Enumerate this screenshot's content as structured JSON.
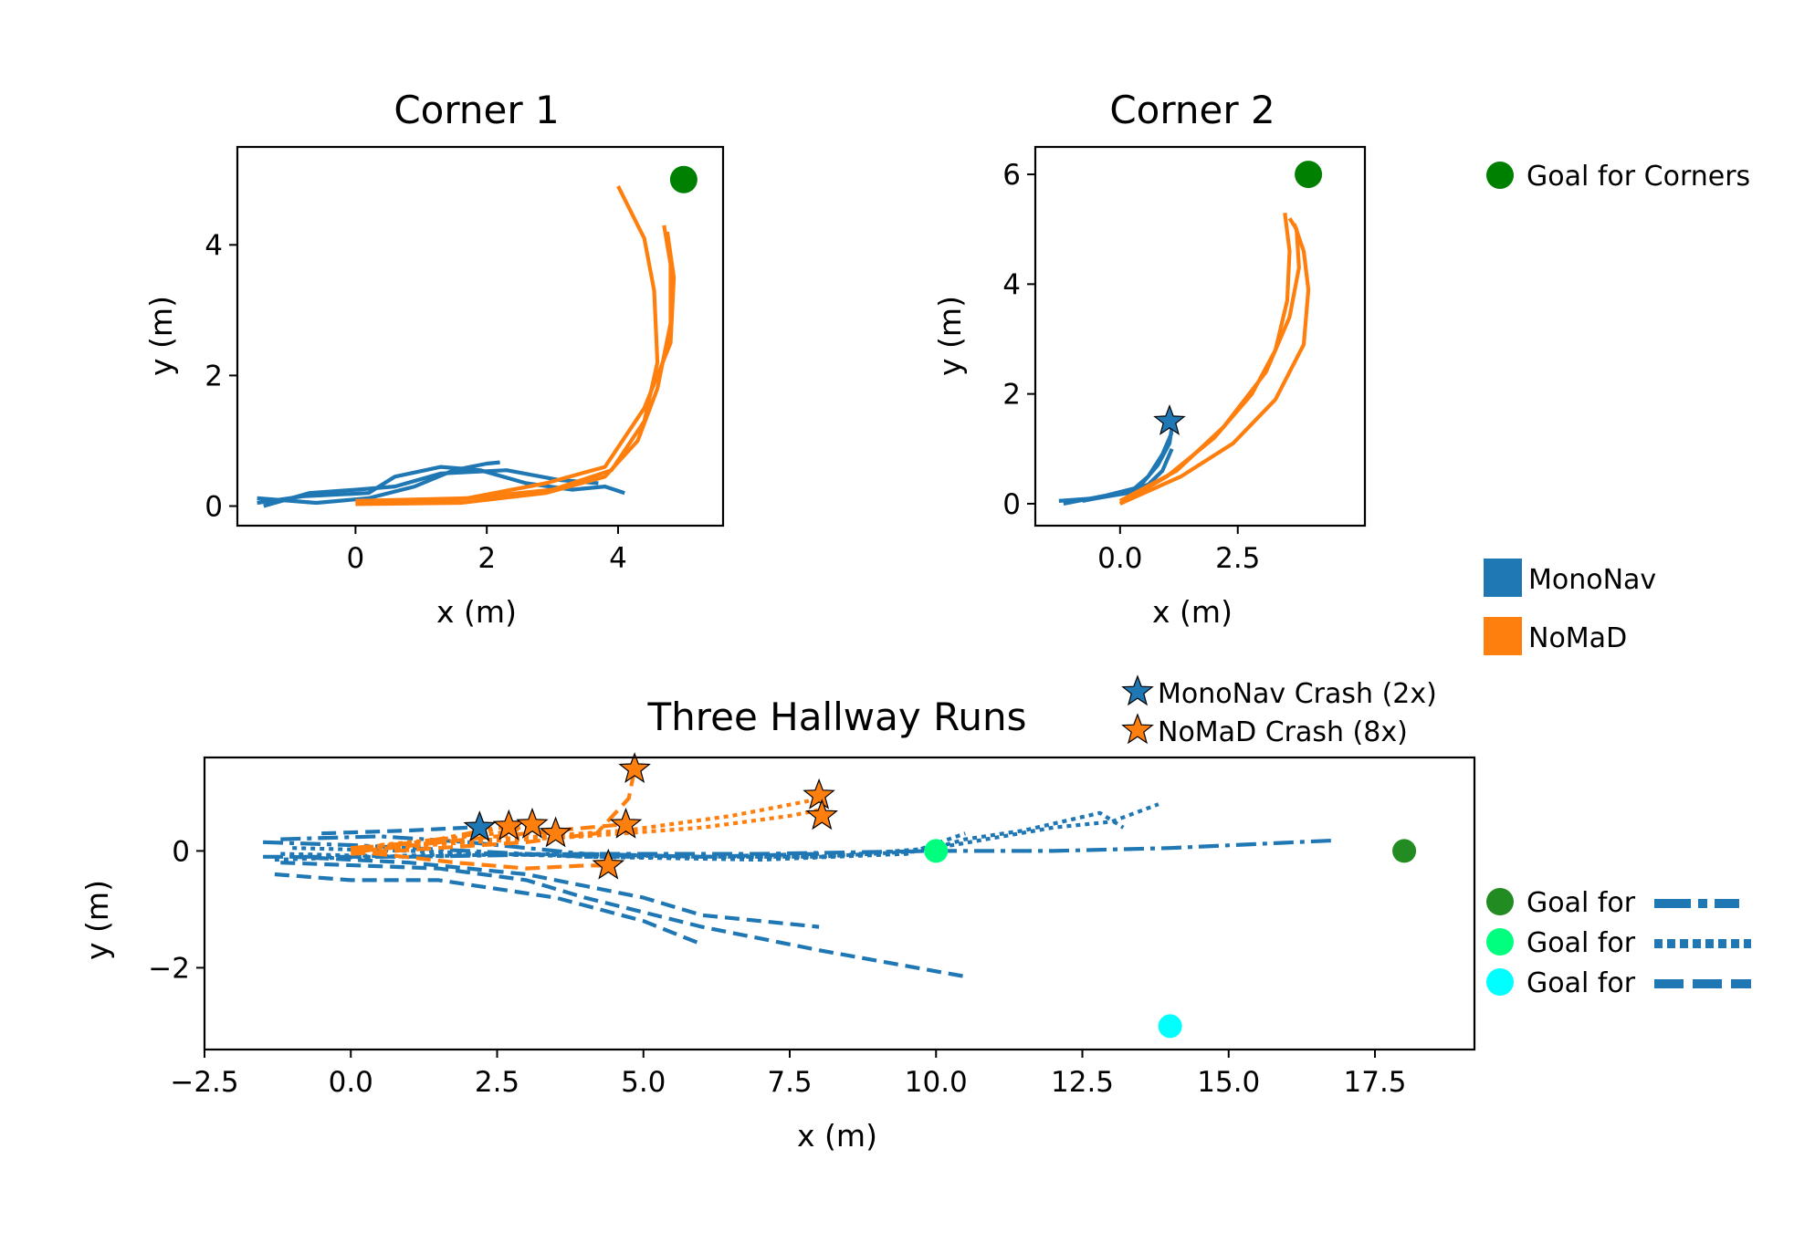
{
  "colors": {
    "mononav": "#1f77b4",
    "nomad": "#ff7f0e",
    "goal_corners": "#008000",
    "goal_dashdot": "#228b22",
    "goal_dotted": "#00ff7f",
    "goal_dashed": "#00ffff"
  },
  "legends": {
    "goal_corners": "Goal for Corners",
    "mononav": "MonoNav",
    "nomad": "NoMaD",
    "mononav_crash": "MonoNav Crash (2x)",
    "nomad_crash": "NoMaD Crash (8x)",
    "goal_for": "Goal for"
  },
  "chart_data": [
    {
      "type": "line",
      "title": "Corner 1",
      "xlabel": "x (m)",
      "ylabel": "y (m)",
      "xlim": [
        -1.8,
        5.6
      ],
      "ylim": [
        -0.3,
        5.5
      ],
      "xticks": [
        0,
        2,
        4
      ],
      "yticks": [
        0,
        2,
        4
      ],
      "goal": {
        "x": 5.0,
        "y": 5.0
      },
      "series": [
        {
          "group": "MonoNav",
          "style": "solid",
          "points": [
            [
              -1.5,
              0.05
            ],
            [
              -0.8,
              0.15
            ],
            [
              0.2,
              0.2
            ],
            [
              0.6,
              0.45
            ],
            [
              1.3,
              0.6
            ],
            [
              1.9,
              0.55
            ],
            [
              2.6,
              0.35
            ],
            [
              3.3,
              0.25
            ],
            [
              3.8,
              0.3
            ],
            [
              4.1,
              0.2
            ]
          ]
        },
        {
          "group": "MonoNav",
          "style": "solid",
          "points": [
            [
              -1.5,
              0.12
            ],
            [
              -0.6,
              0.05
            ],
            [
              0.2,
              0.12
            ],
            [
              0.9,
              0.3
            ],
            [
              1.5,
              0.55
            ],
            [
              2.0,
              0.65
            ],
            [
              2.2,
              0.67
            ]
          ]
        },
        {
          "group": "MonoNav",
          "style": "solid",
          "points": [
            [
              -1.4,
              0.0
            ],
            [
              -0.7,
              0.2
            ],
            [
              0.0,
              0.25
            ],
            [
              0.6,
              0.3
            ],
            [
              1.3,
              0.5
            ],
            [
              2.3,
              0.55
            ],
            [
              3.1,
              0.4
            ],
            [
              3.7,
              0.35
            ]
          ]
        },
        {
          "group": "NoMaD",
          "style": "solid",
          "points": [
            [
              0.0,
              0.05
            ],
            [
              1.5,
              0.1
            ],
            [
              3.0,
              0.25
            ],
            [
              3.9,
              0.55
            ],
            [
              4.4,
              1.3
            ],
            [
              4.6,
              2.2
            ],
            [
              4.55,
              3.3
            ],
            [
              4.4,
              4.1
            ],
            [
              4.0,
              4.9
            ]
          ]
        },
        {
          "group": "NoMaD",
          "style": "solid",
          "points": [
            [
              0.0,
              0.08
            ],
            [
              1.7,
              0.12
            ],
            [
              2.9,
              0.35
            ],
            [
              3.8,
              0.6
            ],
            [
              4.4,
              1.5
            ],
            [
              4.8,
              2.5
            ],
            [
              4.85,
              3.5
            ],
            [
              4.75,
              4.2
            ]
          ]
        },
        {
          "group": "NoMaD",
          "style": "solid",
          "points": [
            [
              0.0,
              0.03
            ],
            [
              1.6,
              0.05
            ],
            [
              2.9,
              0.2
            ],
            [
              3.8,
              0.45
            ],
            [
              4.3,
              1.0
            ],
            [
              4.6,
              1.8
            ],
            [
              4.8,
              2.8
            ],
            [
              4.8,
              3.7
            ],
            [
              4.7,
              4.3
            ]
          ]
        }
      ]
    },
    {
      "type": "line",
      "title": "Corner 2",
      "xlabel": "x (m)",
      "ylabel": "y (m)",
      "xlim": [
        -1.8,
        5.2
      ],
      "ylim": [
        -0.4,
        6.5
      ],
      "xticks": [
        0.0,
        2.5
      ],
      "yticks": [
        0,
        2,
        4,
        6
      ],
      "goal": {
        "x": 4.0,
        "y": 6.0
      },
      "series": [
        {
          "group": "MonoNav",
          "style": "solid",
          "points": [
            [
              -1.3,
              0.05
            ],
            [
              -0.5,
              0.1
            ],
            [
              0.2,
              0.2
            ],
            [
              0.6,
              0.5
            ],
            [
              0.9,
              0.9
            ],
            [
              1.1,
              1.3
            ]
          ]
        },
        {
          "group": "MonoNav",
          "style": "solid",
          "points": [
            [
              -1.2,
              0.0
            ],
            [
              -0.3,
              0.15
            ],
            [
              0.4,
              0.3
            ],
            [
              0.8,
              0.7
            ],
            [
              1.05,
              1.1
            ],
            [
              1.1,
              1.4
            ]
          ]
        },
        {
          "group": "MonoNav",
          "style": "solid",
          "points": [
            [
              -0.8,
              0.05
            ],
            [
              0.1,
              0.2
            ],
            [
              0.6,
              0.35
            ],
            [
              0.9,
              0.6
            ],
            [
              1.1,
              1.0
            ]
          ]
        },
        {
          "group": "NoMaD",
          "style": "solid",
          "points": [
            [
              0.0,
              0.0
            ],
            [
              1.0,
              0.5
            ],
            [
              2.0,
              1.2
            ],
            [
              2.8,
              2.0
            ],
            [
              3.3,
              2.8
            ],
            [
              3.55,
              3.7
            ],
            [
              3.6,
              4.6
            ],
            [
              3.5,
              5.3
            ]
          ]
        },
        {
          "group": "NoMaD",
          "style": "solid",
          "points": [
            [
              0.0,
              0.05
            ],
            [
              1.2,
              0.6
            ],
            [
              2.2,
              1.4
            ],
            [
              3.1,
              2.4
            ],
            [
              3.6,
              3.4
            ],
            [
              3.8,
              4.3
            ],
            [
              3.75,
              5.0
            ],
            [
              3.6,
              5.2
            ]
          ]
        },
        {
          "group": "NoMaD",
          "style": "solid",
          "points": [
            [
              0.0,
              0.0
            ],
            [
              1.3,
              0.5
            ],
            [
              2.4,
              1.1
            ],
            [
              3.3,
              1.9
            ],
            [
              3.9,
              2.9
            ],
            [
              4.0,
              3.9
            ],
            [
              3.9,
              4.6
            ],
            [
              3.7,
              5.1
            ]
          ]
        }
      ],
      "crashes": [
        {
          "group": "MonoNav",
          "x": 1.05,
          "y": 1.5
        }
      ]
    },
    {
      "type": "line",
      "title": "Three Hallway Runs",
      "xlabel": "x (m)",
      "ylabel": "y (m)",
      "xlim": [
        -2.5,
        19.2
      ],
      "ylim": [
        -3.4,
        1.6
      ],
      "xticks": [
        -2.5,
        0.0,
        2.5,
        5.0,
        7.5,
        10.0,
        12.5,
        15.0,
        17.5
      ],
      "yticks": [
        0,
        -2
      ],
      "goals": [
        {
          "style": "dashdot",
          "x": 18.0,
          "y": 0.0
        },
        {
          "style": "dotted",
          "x": 10.0,
          "y": 0.0
        },
        {
          "style": "dashed",
          "x": 14.0,
          "y": -3.0
        }
      ],
      "series": [
        {
          "group": "MonoNav",
          "style": "dashdot",
          "points": [
            [
              -1.5,
              -0.1
            ],
            [
              1.0,
              -0.1
            ],
            [
              4.0,
              -0.05
            ],
            [
              7.0,
              -0.05
            ],
            [
              10.0,
              0.0
            ],
            [
              12.0,
              0.0
            ],
            [
              14.0,
              0.05
            ],
            [
              16.8,
              0.18
            ]
          ]
        },
        {
          "group": "MonoNav",
          "style": "dashdot",
          "points": [
            [
              -1.2,
              0.2
            ],
            [
              0.5,
              0.25
            ],
            [
              2.0,
              0.15
            ],
            [
              4.0,
              -0.05
            ],
            [
              6.0,
              -0.1
            ],
            [
              8.0,
              -0.05
            ]
          ]
        },
        {
          "group": "MonoNav",
          "style": "dashdot",
          "points": [
            [
              -1.5,
              0.15
            ],
            [
              0.0,
              0.1
            ],
            [
              2.0,
              0.0
            ],
            [
              4.0,
              -0.1
            ],
            [
              5.0,
              -0.1
            ]
          ]
        },
        {
          "group": "MonoNav",
          "style": "dotted",
          "points": [
            [
              -1.2,
              -0.05
            ],
            [
              1.0,
              -0.1
            ],
            [
              3.0,
              -0.05
            ],
            [
              6.0,
              -0.1
            ],
            [
              8.0,
              -0.1
            ],
            [
              9.8,
              0.0
            ],
            [
              10.5,
              0.2
            ],
            [
              11.5,
              0.35
            ],
            [
              12.8,
              0.65
            ],
            [
              13.2,
              0.4
            ]
          ]
        },
        {
          "group": "MonoNav",
          "style": "dotted",
          "points": [
            [
              -1.0,
              0.05
            ],
            [
              1.0,
              0.0
            ],
            [
              4.0,
              -0.1
            ],
            [
              7.0,
              -0.15
            ],
            [
              9.5,
              -0.05
            ],
            [
              10.5,
              0.3
            ]
          ]
        },
        {
          "group": "MonoNav",
          "style": "dotted",
          "points": [
            [
              -1.3,
              -0.15
            ],
            [
              2.0,
              -0.05
            ],
            [
              5.0,
              -0.1
            ],
            [
              8.0,
              -0.1
            ],
            [
              10.0,
              0.05
            ],
            [
              12.0,
              0.4
            ],
            [
              13.0,
              0.5
            ],
            [
              13.8,
              0.8
            ]
          ]
        },
        {
          "group": "MonoNav",
          "style": "dashed",
          "points": [
            [
              -1.3,
              -0.4
            ],
            [
              0.0,
              -0.5
            ],
            [
              1.5,
              -0.5
            ],
            [
              3.5,
              -0.8
            ],
            [
              5.0,
              -1.2
            ],
            [
              6.0,
              -1.6
            ]
          ]
        },
        {
          "group": "MonoNav",
          "style": "dashed",
          "points": [
            [
              -1.0,
              -0.1
            ],
            [
              1.0,
              -0.2
            ],
            [
              3.0,
              -0.4
            ],
            [
              5.0,
              -0.8
            ],
            [
              6.0,
              -1.1
            ],
            [
              8.0,
              -1.3
            ]
          ]
        },
        {
          "group": "MonoNav",
          "style": "dashed",
          "points": [
            [
              -1.2,
              -0.2
            ],
            [
              1.5,
              -0.3
            ],
            [
              3.0,
              -0.5
            ],
            [
              4.0,
              -0.8
            ],
            [
              6.0,
              -1.3
            ],
            [
              8.0,
              -1.7
            ],
            [
              10.5,
              -2.15
            ]
          ]
        },
        {
          "group": "MonoNav",
          "style": "dashed",
          "points": [
            [
              -0.5,
              0.3
            ],
            [
              1.0,
              0.35
            ],
            [
              2.0,
              0.4
            ]
          ]
        },
        {
          "group": "NoMaD",
          "style": "dashdot",
          "points": [
            [
              0.0,
              0.0
            ],
            [
              1.5,
              0.2
            ],
            [
              2.5,
              0.4
            ],
            [
              3.4,
              0.3
            ]
          ]
        },
        {
          "group": "NoMaD",
          "style": "dashdot",
          "points": [
            [
              0.0,
              0.05
            ],
            [
              1.2,
              0.15
            ],
            [
              2.2,
              0.3
            ],
            [
              2.7,
              0.45
            ]
          ]
        },
        {
          "group": "NoMaD",
          "style": "dotted",
          "points": [
            [
              0.0,
              0.0
            ],
            [
              2.0,
              0.15
            ],
            [
              4.0,
              0.25
            ],
            [
              6.0,
              0.4
            ],
            [
              7.5,
              0.6
            ],
            [
              8.0,
              0.7
            ]
          ]
        },
        {
          "group": "NoMaD",
          "style": "dotted",
          "points": [
            [
              0.0,
              0.05
            ],
            [
              2.5,
              0.2
            ],
            [
              4.7,
              0.35
            ],
            [
              6.5,
              0.6
            ],
            [
              7.8,
              0.85
            ],
            [
              8.0,
              0.95
            ]
          ]
        },
        {
          "group": "NoMaD",
          "style": "dotted",
          "points": [
            [
              0.5,
              0.1
            ],
            [
              2.5,
              0.3
            ],
            [
              3.1,
              0.45
            ]
          ]
        },
        {
          "group": "NoMaD",
          "style": "dashed",
          "points": [
            [
              0.0,
              -0.05
            ],
            [
              1.5,
              0.05
            ],
            [
              3.0,
              0.15
            ],
            [
              4.2,
              0.3
            ],
            [
              4.75,
              0.9
            ],
            [
              4.85,
              1.4
            ]
          ]
        },
        {
          "group": "NoMaD",
          "style": "dashed",
          "points": [
            [
              0.0,
              0.0
            ],
            [
              1.8,
              -0.2
            ],
            [
              3.0,
              -0.3
            ],
            [
              4.0,
              -0.25
            ],
            [
              4.4,
              -0.25
            ]
          ]
        },
        {
          "group": "NoMaD",
          "style": "dashed",
          "points": [
            [
              0.2,
              0.0
            ],
            [
              2.0,
              0.2
            ],
            [
              3.5,
              0.35
            ],
            [
              4.6,
              0.45
            ]
          ]
        }
      ],
      "crashes": [
        {
          "group": "MonoNav",
          "x": 2.2,
          "y": 0.4
        },
        {
          "group": "NoMaD",
          "x": 2.7,
          "y": 0.42
        },
        {
          "group": "NoMaD",
          "x": 3.1,
          "y": 0.45
        },
        {
          "group": "NoMaD",
          "x": 3.5,
          "y": 0.3
        },
        {
          "group": "NoMaD",
          "x": 4.85,
          "y": 1.4
        },
        {
          "group": "NoMaD",
          "x": 4.7,
          "y": 0.45
        },
        {
          "group": "NoMaD",
          "x": 4.4,
          "y": -0.25
        },
        {
          "group": "NoMaD",
          "x": 8.0,
          "y": 0.95
        },
        {
          "group": "NoMaD",
          "x": 8.05,
          "y": 0.6
        }
      ]
    }
  ]
}
